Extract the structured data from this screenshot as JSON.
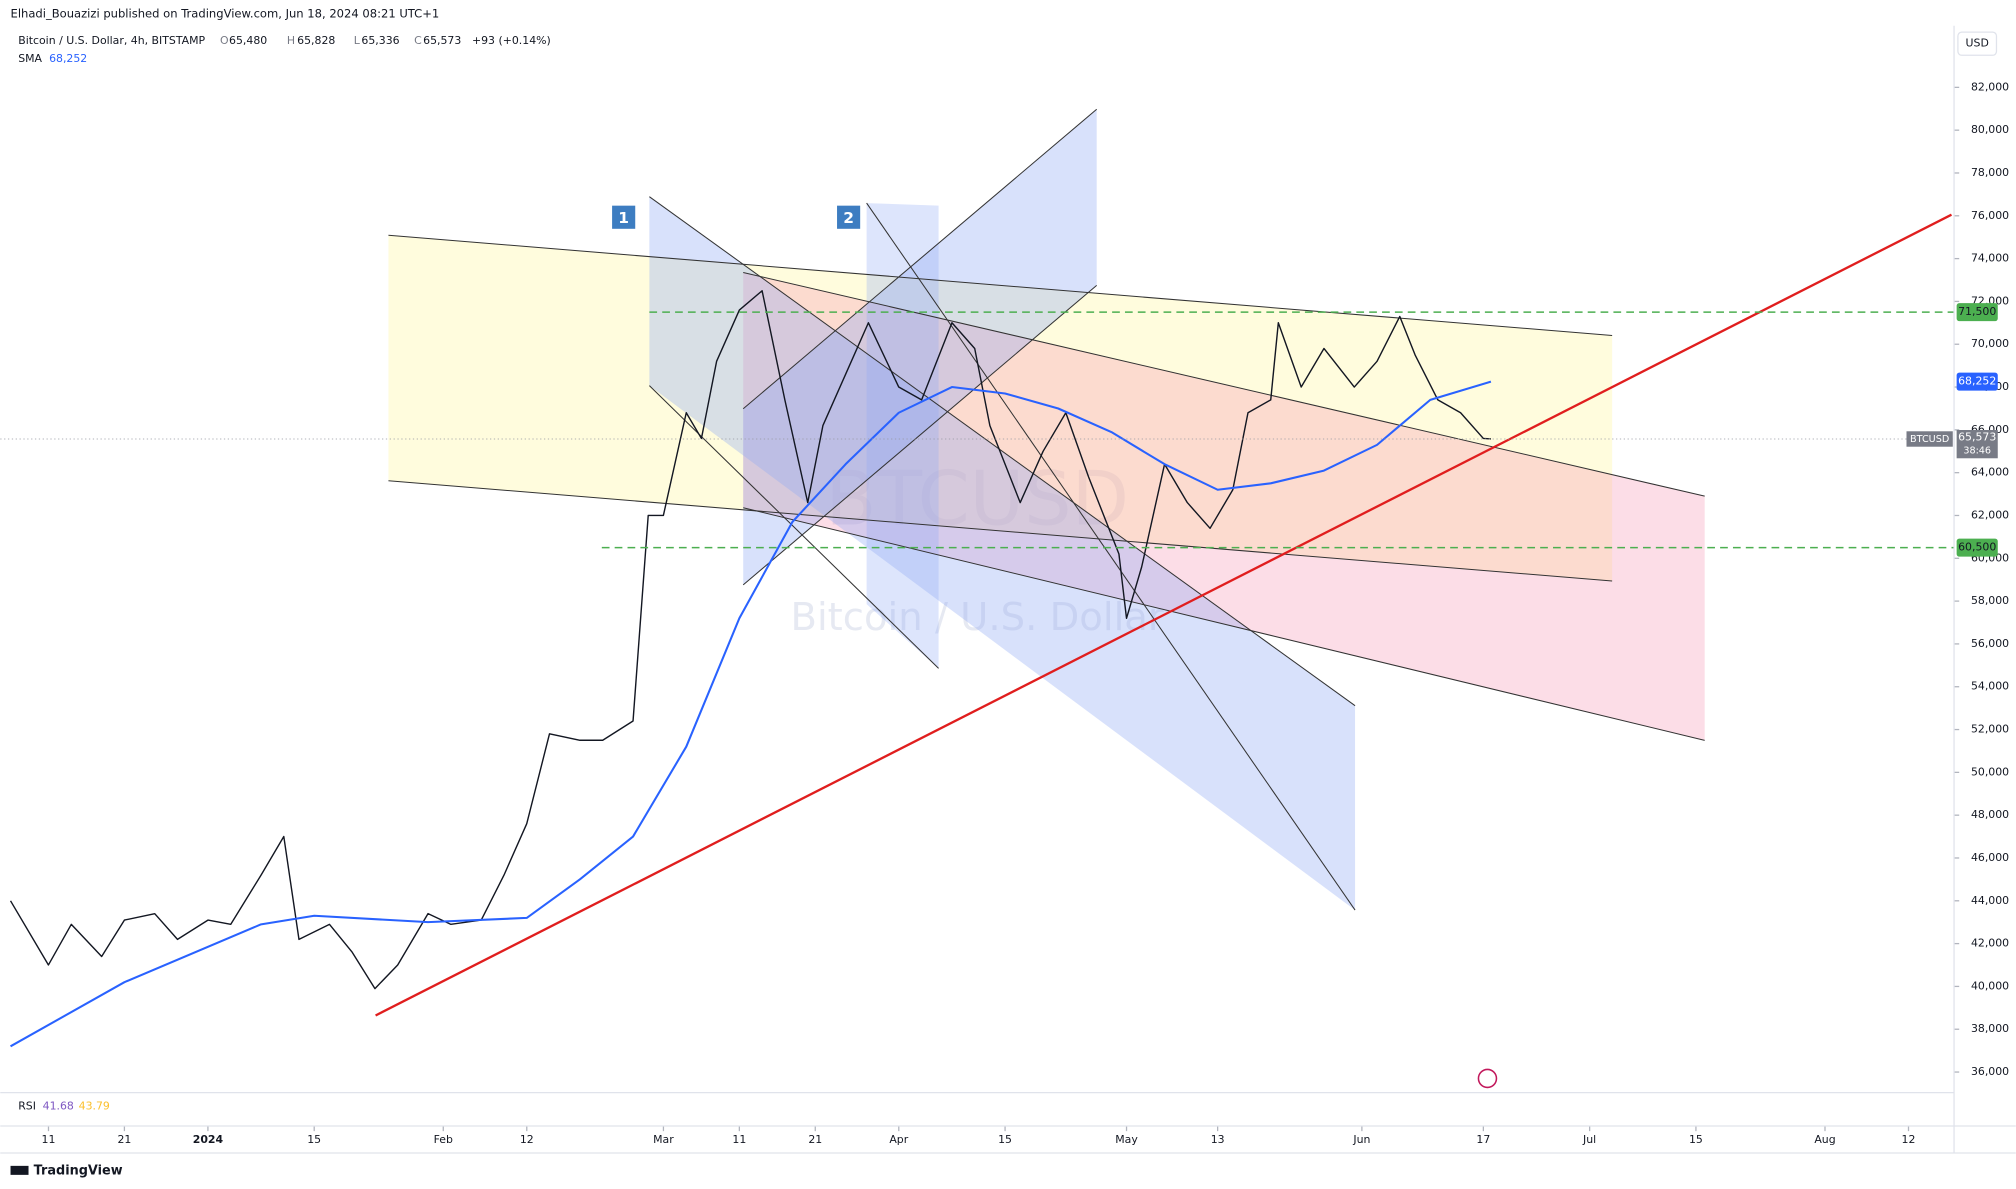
{
  "header": {
    "published": "Elhadi_Bouazizi published on TradingView.com, Jun 18, 2024 08:21 UTC+1",
    "symbol": "Bitcoin / U.S. Dollar, 4h, BITSTAMP",
    "ohlc": [
      [
        "O",
        "65,480"
      ],
      [
        "H",
        "65,828"
      ],
      [
        "L",
        "65,336"
      ],
      [
        "C",
        "65,573"
      ]
    ],
    "change": "+93 (+0.14%)",
    "sma_label": "SMA",
    "sma_value": "68,252"
  },
  "chart_data": {
    "type": "line",
    "currency": "USD",
    "watermark": [
      "BTCUSD",
      "Bitcoin / U.S. Dollar"
    ],
    "drawing_labels": [
      "1",
      "2"
    ],
    "price_tag": {
      "symbol": "BTCUSD",
      "price": "65,573",
      "countdown": "38:46"
    },
    "xlim": [
      "2023-12-06",
      "2024-08-18"
    ],
    "xticks": [
      {
        "value": "2023-12-11",
        "label": "11"
      },
      {
        "value": "2023-12-21",
        "label": "21"
      },
      {
        "value": "2024-01-01",
        "label": "2024"
      },
      {
        "value": "2024-01-15",
        "label": "15"
      },
      {
        "value": "2024-02-01",
        "label": "Feb"
      },
      {
        "value": "2024-02-12",
        "label": "12"
      },
      {
        "value": "2024-03-01",
        "label": "Mar"
      },
      {
        "value": "2024-03-11",
        "label": "11"
      },
      {
        "value": "2024-03-21",
        "label": "21"
      },
      {
        "value": "2024-04-01",
        "label": "Apr"
      },
      {
        "value": "2024-04-15",
        "label": "15"
      },
      {
        "value": "2024-05-01",
        "label": "May"
      },
      {
        "value": "2024-05-13",
        "label": "13"
      },
      {
        "value": "2024-06-01",
        "label": "Jun"
      },
      {
        "value": "2024-06-17",
        "label": "17"
      },
      {
        "value": "2024-07-01",
        "label": "Jul"
      },
      {
        "value": "2024-07-15",
        "label": "15"
      },
      {
        "value": "2024-08-01",
        "label": "Aug"
      },
      {
        "value": "2024-08-12",
        "label": "12"
      }
    ],
    "ylim": [
      35040,
      84880
    ],
    "yticks": [
      {
        "value": 36000,
        "label": "36,000"
      },
      {
        "value": 38000,
        "label": "38,000"
      },
      {
        "value": 40000,
        "label": "40,000"
      },
      {
        "value": 42000,
        "label": "42,000"
      },
      {
        "value": 44000,
        "label": "44,000"
      },
      {
        "value": 46000,
        "label": "46,000"
      },
      {
        "value": 48000,
        "label": "48,000"
      },
      {
        "value": 50000,
        "label": "50,000"
      },
      {
        "value": 52000,
        "label": "52,000"
      },
      {
        "value": 54000,
        "label": "54,000"
      },
      {
        "value": 56000,
        "label": "56,000"
      },
      {
        "value": 58000,
        "label": "58,000"
      },
      {
        "value": 60000,
        "label": "60,000"
      },
      {
        "value": 62000,
        "label": "62,000"
      },
      {
        "value": 64000,
        "label": "64,000"
      },
      {
        "value": 66000,
        "label": "66,000"
      },
      {
        "value": 68000,
        "label": "68,000"
      },
      {
        "value": 70000,
        "label": "70,000"
      },
      {
        "value": 72000,
        "label": "72,000"
      },
      {
        "value": 74000,
        "label": "74,000"
      },
      {
        "value": 76000,
        "label": "76,000"
      },
      {
        "value": 78000,
        "label": "78,000"
      },
      {
        "value": 80000,
        "label": "80,000"
      },
      {
        "value": 82000,
        "label": "82,000"
      }
    ],
    "grid": false,
    "levels": [
      {
        "value": 71500,
        "label": "71,500",
        "color": "#4caf50"
      },
      {
        "value": 60500,
        "label": "60,500",
        "color": "#4caf50"
      }
    ],
    "series": [
      {
        "name": "BTCUSD",
        "color": "#131722",
        "x": [
          "2023-12-06",
          "2023-12-11",
          "2023-12-14",
          "2023-12-18",
          "2023-12-21",
          "2023-12-25",
          "2023-12-28",
          "2024-01-01",
          "2024-01-04",
          "2024-01-08",
          "2024-01-11",
          "2024-01-13",
          "2024-01-17",
          "2024-01-20",
          "2024-01-23",
          "2024-01-26",
          "2024-01-30",
          "2024-02-02",
          "2024-02-06",
          "2024-02-09",
          "2024-02-12",
          "2024-02-15",
          "2024-02-19",
          "2024-02-22",
          "2024-02-26",
          "2024-02-28",
          "2024-03-01",
          "2024-03-04",
          "2024-03-06",
          "2024-03-08",
          "2024-03-11",
          "2024-03-14",
          "2024-03-17",
          "2024-03-20",
          "2024-03-22",
          "2024-03-25",
          "2024-03-28",
          "2024-04-01",
          "2024-04-04",
          "2024-04-08",
          "2024-04-11",
          "2024-04-13",
          "2024-04-17",
          "2024-04-20",
          "2024-04-23",
          "2024-04-26",
          "2024-04-30",
          "2024-05-01",
          "2024-05-03",
          "2024-05-06",
          "2024-05-09",
          "2024-05-12",
          "2024-05-15",
          "2024-05-17",
          "2024-05-20",
          "2024-05-21",
          "2024-05-24",
          "2024-05-27",
          "2024-05-31",
          "2024-06-03",
          "2024-06-06",
          "2024-06-08",
          "2024-06-11",
          "2024-06-14",
          "2024-06-17",
          "2024-06-18"
        ],
        "values": [
          44000,
          41000,
          42900,
          41400,
          43100,
          43400,
          42200,
          43100,
          42900,
          45200,
          47000,
          42200,
          42900,
          41600,
          39900,
          41000,
          43400,
          42900,
          43100,
          45200,
          47600,
          51800,
          51500,
          51500,
          52400,
          62000,
          62000,
          66800,
          65600,
          69200,
          71600,
          72500,
          67400,
          62600,
          66200,
          68600,
          71000,
          68000,
          67400,
          71000,
          69800,
          66200,
          62600,
          65000,
          66800,
          63800,
          60200,
          57200,
          59600,
          64400,
          62600,
          61400,
          63200,
          66800,
          67400,
          71000,
          68000,
          69800,
          68000,
          69200,
          71300,
          69500,
          67400,
          66800,
          65600,
          65573
        ]
      },
      {
        "name": "SMA",
        "color": "#2962ff",
        "x": [
          "2023-12-06",
          "2023-12-21",
          "2024-01-08",
          "2024-01-15",
          "2024-01-30",
          "2024-02-12",
          "2024-02-19",
          "2024-02-26",
          "2024-03-04",
          "2024-03-11",
          "2024-03-18",
          "2024-03-25",
          "2024-04-01",
          "2024-04-08",
          "2024-04-15",
          "2024-04-22",
          "2024-04-29",
          "2024-05-06",
          "2024-05-13",
          "2024-05-20",
          "2024-05-27",
          "2024-06-03",
          "2024-06-10",
          "2024-06-18"
        ],
        "values": [
          37200,
          40200,
          42900,
          43300,
          43000,
          43200,
          45000,
          47000,
          51200,
          57200,
          61700,
          64400,
          66800,
          68000,
          67700,
          67000,
          65900,
          64400,
          63200,
          63500,
          64100,
          65300,
          67400,
          68252
        ]
      }
    ]
  },
  "rsi": {
    "label": "RSI",
    "values": [
      "41.68",
      "43.79"
    ]
  },
  "footer": {
    "brand": "TradingView"
  }
}
